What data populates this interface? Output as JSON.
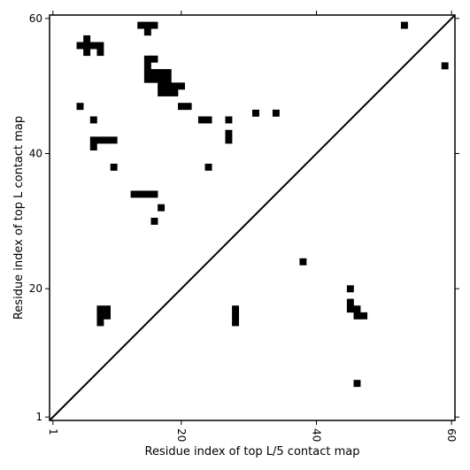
{
  "chart_data": {
    "type": "heatmap",
    "xlabel": "Residue index of top L/5 contact map",
    "ylabel": "Residue index of top L contact map",
    "xlim": [
      1,
      60
    ],
    "ylim": [
      1,
      60
    ],
    "xticks": [
      {
        "value": 1,
        "label": "1"
      },
      {
        "value": 20,
        "label": "20"
      },
      {
        "value": 40,
        "label": "40"
      },
      {
        "value": 60,
        "label": "60"
      }
    ],
    "yticks": [
      {
        "value": 1,
        "label": "1"
      },
      {
        "value": 20,
        "label": "20"
      },
      {
        "value": 40,
        "label": "40"
      },
      {
        "value": 60,
        "label": "60"
      }
    ],
    "diagonal": true,
    "colors": {
      "contact": "#000000",
      "background": "#ffffff"
    },
    "upper_left_contacts": [
      [
        14,
        59
      ],
      [
        15,
        59
      ],
      [
        16,
        59
      ],
      [
        15,
        58
      ],
      [
        6,
        57
      ],
      [
        5,
        56
      ],
      [
        6,
        56
      ],
      [
        7,
        56
      ],
      [
        8,
        56
      ],
      [
        6,
        55
      ],
      [
        8,
        55
      ],
      [
        15,
        54
      ],
      [
        16,
        54
      ],
      [
        15,
        53
      ],
      [
        15,
        52
      ],
      [
        16,
        52
      ],
      [
        17,
        52
      ],
      [
        18,
        52
      ],
      [
        15,
        51
      ],
      [
        16,
        51
      ],
      [
        17,
        51
      ],
      [
        18,
        51
      ],
      [
        17,
        50
      ],
      [
        18,
        50
      ],
      [
        19,
        50
      ],
      [
        20,
        50
      ],
      [
        17,
        49
      ],
      [
        18,
        49
      ],
      [
        19,
        49
      ],
      [
        5,
        47
      ],
      [
        20,
        47
      ],
      [
        21,
        47
      ],
      [
        31,
        46
      ],
      [
        34,
        46
      ],
      [
        23,
        45
      ],
      [
        24,
        45
      ],
      [
        27,
        45
      ],
      [
        7,
        45
      ],
      [
        27,
        43
      ],
      [
        7,
        42
      ],
      [
        8,
        42
      ],
      [
        9,
        42
      ],
      [
        10,
        42
      ],
      [
        27,
        42
      ],
      [
        7,
        41
      ],
      [
        10,
        38
      ],
      [
        24,
        38
      ],
      [
        13,
        34
      ],
      [
        14,
        34
      ],
      [
        15,
        34
      ],
      [
        16,
        34
      ],
      [
        17,
        32
      ],
      [
        16,
        30
      ],
      [
        8,
        17
      ],
      [
        9,
        17
      ],
      [
        28,
        17
      ],
      [
        8,
        16
      ],
      [
        9,
        16
      ],
      [
        28,
        16
      ],
      [
        8,
        15
      ],
      [
        28,
        15
      ]
    ],
    "lower_right_contacts": [
      [
        53,
        59
      ],
      [
        59,
        53
      ],
      [
        38,
        24
      ],
      [
        45,
        20
      ],
      [
        45,
        18
      ],
      [
        45,
        17
      ],
      [
        46,
        17
      ],
      [
        46,
        16
      ],
      [
        47,
        16
      ],
      [
        46,
        6
      ]
    ]
  }
}
